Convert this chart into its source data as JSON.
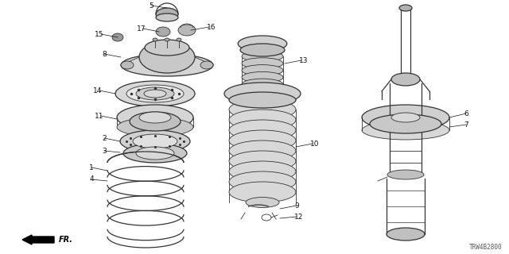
{
  "background_color": "#ffffff",
  "diagram_code": "TRW4B2800",
  "fr_label": "FR.",
  "line_color": "#333333",
  "text_color": "#111111",
  "font_size_labels": 6.5,
  "font_size_code": 5.5,
  "figsize": [
    6.4,
    3.2
  ],
  "dpi": 100,
  "xlim": [
    0,
    640
  ],
  "ylim": [
    0,
    320
  ]
}
